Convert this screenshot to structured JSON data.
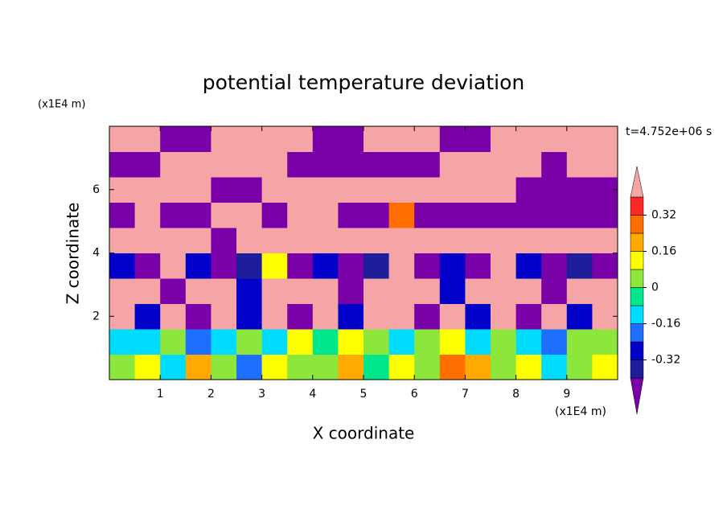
{
  "chart_data": {
    "type": "contour",
    "title": "potential temperature deviation",
    "xlabel": "X coordinate",
    "ylabel": "Z coordinate",
    "xunit": "(x1E4 m)",
    "yunit": "(x1E4 m)",
    "time_label": "t=4.752e+06 s",
    "xlim": [
      0,
      10
    ],
    "ylim": [
      0,
      8
    ],
    "xticks": [
      1,
      2,
      3,
      4,
      5,
      6,
      7,
      8,
      9
    ],
    "yticks": [
      2,
      4,
      6
    ],
    "levels": [
      -0.4,
      -0.32,
      -0.24,
      -0.16,
      -0.08,
      0,
      0.08,
      0.16,
      0.24,
      0.32,
      0.4
    ],
    "colors": [
      "#7a00a8",
      "#1e1e9a",
      "#0000c8",
      "#1e6eff",
      "#00dcff",
      "#00e68c",
      "#8ce63c",
      "#ffff00",
      "#ffaa00",
      "#ff6e00",
      "#ff2828",
      "#f5a5a5"
    ],
    "cbar_ticks": [
      0.32,
      0.16,
      0,
      -0.16,
      -0.32
    ],
    "z": [
      [
        0.05,
        0.1,
        -0.1,
        0.2,
        0.05,
        -0.2,
        0.1,
        0.05,
        0.0,
        0.2,
        -0.05,
        0.1,
        0.05,
        0.3,
        0.2,
        0.0,
        0.1,
        -0.1,
        0.05,
        0.1
      ],
      [
        -0.1,
        -0.12,
        0.05,
        -0.2,
        -0.1,
        0.05,
        -0.1,
        0.1,
        -0.05,
        0.15,
        0.0,
        -0.1,
        0.05,
        0.1,
        -0.1,
        0.0,
        -0.12,
        -0.2,
        0.05,
        0.0
      ],
      [
        0.5,
        -0.3,
        0.5,
        -0.5,
        0.5,
        -0.25,
        0.5,
        -0.5,
        0.5,
        -0.3,
        0.5,
        0.5,
        -0.5,
        0.5,
        -0.3,
        0.5,
        -0.5,
        0.5,
        -0.3,
        0.5
      ],
      [
        0.5,
        0.5,
        -0.5,
        0.5,
        0.5,
        -0.3,
        0.5,
        0.5,
        0.5,
        -0.5,
        0.5,
        0.5,
        0.5,
        -0.3,
        0.5,
        0.5,
        0.5,
        -0.5,
        0.5,
        0.5
      ],
      [
        -0.3,
        -0.5,
        0.5,
        -0.3,
        -0.5,
        -0.35,
        0.1,
        -0.5,
        -0.3,
        -0.5,
        -0.35,
        0.5,
        -0.5,
        -0.3,
        -0.5,
        0.5,
        -0.3,
        -0.5,
        -0.35,
        -0.5
      ],
      [
        0.5,
        0.5,
        0.5,
        0.5,
        -0.5,
        0.5,
        0.5,
        0.5,
        0.5,
        0.5,
        0.5,
        0.5,
        0.5,
        0.5,
        0.5,
        0.5,
        0.5,
        0.5,
        0.5,
        0.5
      ],
      [
        -0.5,
        0.5,
        -0.5,
        -0.5,
        0.5,
        0.5,
        -0.5,
        0.5,
        0.5,
        -0.5,
        -0.5,
        0.3,
        -0.5,
        -0.5,
        -0.5,
        -0.5,
        -0.5,
        -0.5,
        -0.5,
        -0.5
      ],
      [
        0.5,
        0.5,
        0.5,
        0.5,
        -0.5,
        -0.5,
        0.5,
        0.5,
        0.5,
        0.5,
        0.5,
        0.5,
        0.5,
        0.5,
        0.5,
        0.5,
        -0.5,
        -0.5,
        -0.5,
        -0.5
      ],
      [
        -0.5,
        -0.5,
        0.5,
        0.5,
        0.5,
        0.5,
        0.5,
        -0.5,
        -0.5,
        -0.5,
        -0.5,
        -0.5,
        -0.5,
        0.5,
        0.5,
        0.5,
        0.5,
        -0.5,
        0.5,
        0.5
      ],
      [
        0.5,
        0.5,
        -0.5,
        -0.5,
        0.5,
        0.5,
        0.5,
        0.5,
        -0.5,
        -0.5,
        0.5,
        0.5,
        0.5,
        -0.5,
        -0.5,
        0.5,
        0.5,
        0.5,
        0.5,
        0.5
      ]
    ]
  }
}
